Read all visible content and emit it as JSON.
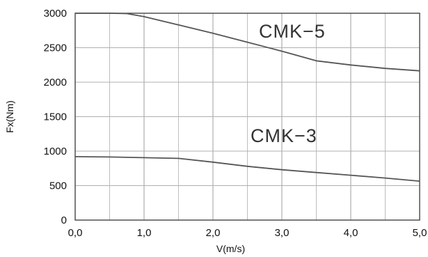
{
  "chart_data": {
    "type": "line",
    "title": "",
    "xlabel": "V(m/s)",
    "ylabel": "Fx(Nm)",
    "xlim": [
      0,
      5
    ],
    "ylim": [
      0,
      3000
    ],
    "grid": true,
    "legend": "none",
    "x_ticks": [
      "0,0",
      "1,0",
      "2,0",
      "3,0",
      "4,0",
      "5,0"
    ],
    "x_tick_values": [
      0,
      1,
      2,
      3,
      4,
      5
    ],
    "y_ticks": [
      "0",
      "500",
      "1000",
      "1500",
      "2000",
      "2500",
      "3000"
    ],
    "y_tick_values": [
      0,
      500,
      1000,
      1500,
      2000,
      2500,
      3000
    ],
    "x_minor_grid_values": [
      0.5,
      1.5,
      2.5,
      3.5,
      4.5
    ],
    "series": [
      {
        "name": "CMK−5",
        "color": "#555555",
        "x": [
          0.0,
          0.5,
          0.75,
          1.0,
          1.5,
          2.0,
          2.5,
          3.0,
          3.5,
          4.0,
          4.5,
          5.0
        ],
        "values": [
          3000,
          3000,
          2995,
          2950,
          2830,
          2710,
          2580,
          2450,
          2310,
          2250,
          2200,
          2165
        ]
      },
      {
        "name": "CMK−3",
        "color": "#555555",
        "x": [
          0.0,
          0.5,
          1.0,
          1.5,
          2.0,
          2.5,
          3.0,
          3.5,
          4.0,
          4.5,
          5.0
        ],
        "values": [
          920,
          915,
          905,
          895,
          840,
          780,
          730,
          690,
          650,
          610,
          565
        ]
      }
    ]
  }
}
